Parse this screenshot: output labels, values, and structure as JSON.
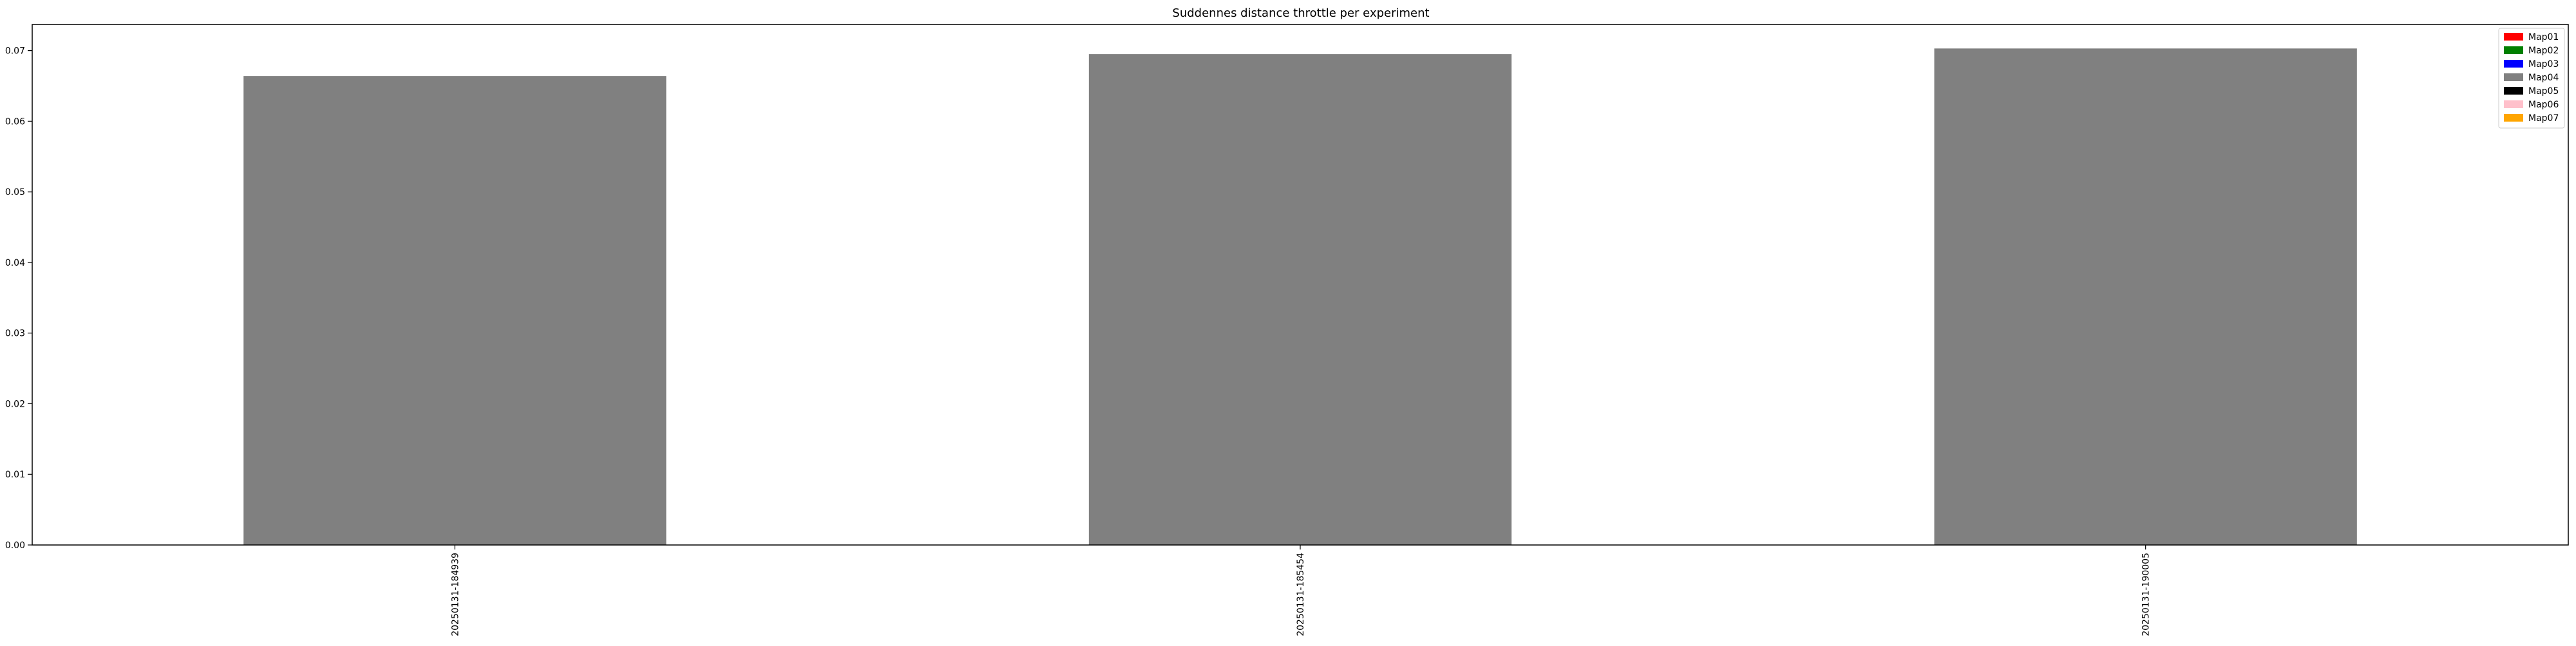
{
  "chart_data": {
    "type": "bar",
    "title": "Suddennes distance throttle per experiment",
    "xlabel": "",
    "ylabel": "",
    "categories": [
      "20250131-184939",
      "20250131-185454",
      "20250131-190005"
    ],
    "series": [
      {
        "name": "Map01",
        "color": "#ff0000",
        "values": [
          0,
          0,
          0
        ]
      },
      {
        "name": "Map02",
        "color": "#008000",
        "values": [
          0,
          0,
          0
        ]
      },
      {
        "name": "Map03",
        "color": "#0000ff",
        "values": [
          0,
          0,
          0
        ]
      },
      {
        "name": "Map04",
        "color": "#808080",
        "values": [
          0.0664,
          0.0695,
          0.0703
        ]
      },
      {
        "name": "Map05",
        "color": "#000000",
        "values": [
          0,
          0,
          0
        ]
      },
      {
        "name": "Map06",
        "color": "#ffc0cb",
        "values": [
          0,
          0,
          0
        ]
      },
      {
        "name": "Map07",
        "color": "#ffa500",
        "values": [
          0,
          0,
          0
        ]
      }
    ],
    "ylim": [
      0,
      0.0737
    ],
    "yticks": [
      "0.00",
      "0.01",
      "0.02",
      "0.03",
      "0.04",
      "0.05",
      "0.06",
      "0.07"
    ],
    "ytick_values": [
      0,
      0.01,
      0.02,
      0.03,
      0.04,
      0.05,
      0.06,
      0.07
    ],
    "grid": false,
    "legend_position": "top-right",
    "stacked": true
  }
}
